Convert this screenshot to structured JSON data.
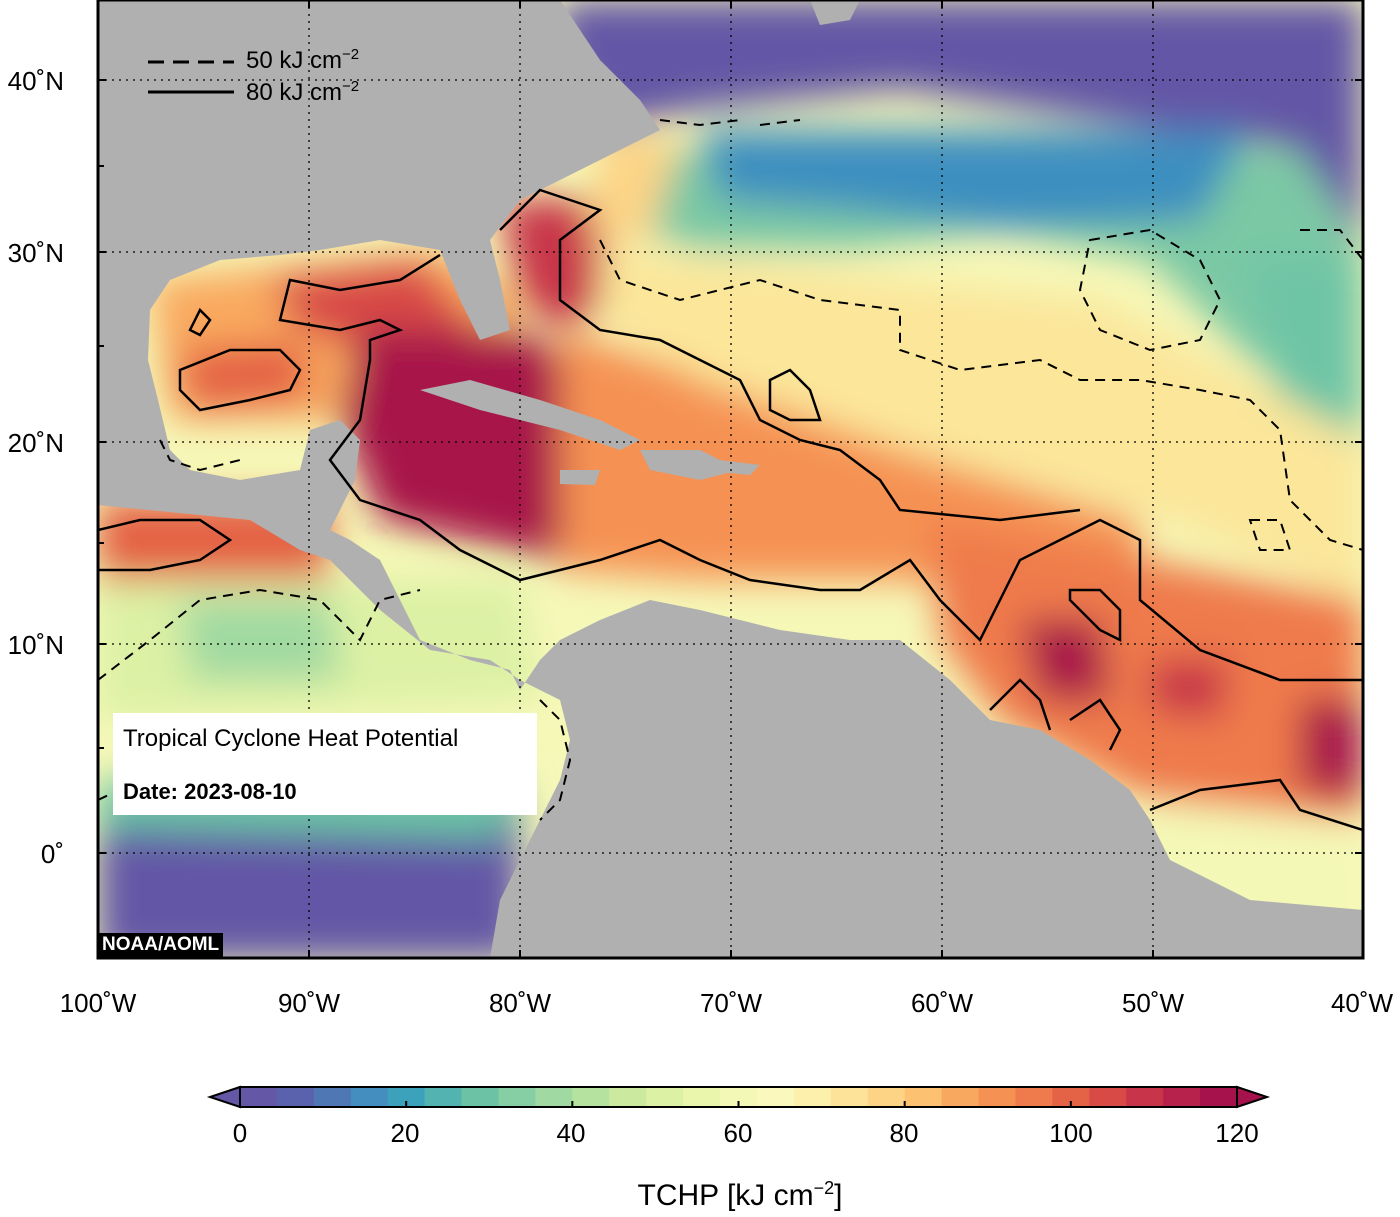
{
  "map": {
    "title": "Tropical Cyclone Heat Potential",
    "date_label": "Date: 2023-08-10",
    "credit": "NOAA/AOML",
    "legend": [
      {
        "style": "dashed",
        "label": "50 kJ cm",
        "exponent": "−2"
      },
      {
        "style": "solid",
        "label": "80 kJ cm",
        "exponent": "−2"
      }
    ],
    "lat_labels": [
      "40˚N",
      "30˚N",
      "20˚N",
      "10˚N",
      "0˚"
    ],
    "lon_labels": [
      "100˚W",
      "90˚W",
      "80˚W",
      "70˚W",
      "60˚W",
      "50˚W",
      "40˚W"
    ],
    "land_color": "#b0b0b0",
    "colors": {
      "deep_purple": "#6457a6",
      "blue": "#3e8fc0",
      "teal": "#6ec5a6",
      "green": "#b8e2a0",
      "yellow": "#f6f8b8",
      "cream": "#fdf2b0",
      "orange": "#f7a45e",
      "red_orange": "#e2554a",
      "crimson": "#a8124a"
    }
  },
  "colorbar": {
    "title": "TCHP [kJ cm",
    "title_exponent": "−2",
    "title_close": "]",
    "tick_labels": [
      "0",
      "20",
      "40",
      "60",
      "80",
      "100",
      "120"
    ],
    "colors": [
      "#6457a6",
      "#5b62ad",
      "#4f77b4",
      "#448ebf",
      "#3ca1bb",
      "#53b3b0",
      "#6bc2a5",
      "#86ceA3",
      "#a0d9a1",
      "#b6e2a0",
      "#cbeaa0",
      "#dcf1a4",
      "#eaf6ab",
      "#f4f8b6",
      "#fbf8bd",
      "#fdf0ad",
      "#fde39a",
      "#fdd486",
      "#fcc171",
      "#f9a95f",
      "#f59253",
      "#ef7a4b",
      "#e46245",
      "#d84a46",
      "#c8354a",
      "#b7224c",
      "#a6124c"
    ]
  }
}
